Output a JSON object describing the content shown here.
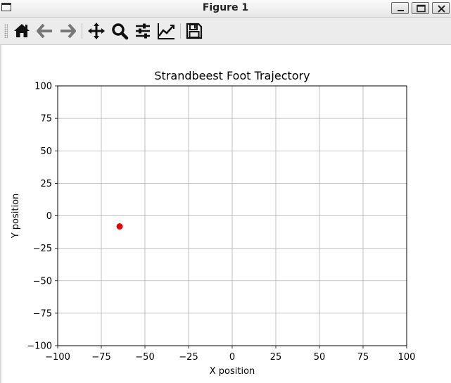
{
  "window": {
    "title": "Figure 1"
  },
  "toolbar": {
    "buttons": [
      {
        "name": "home-button",
        "icon": "home-icon"
      },
      {
        "name": "back-button",
        "icon": "arrow-left-icon"
      },
      {
        "name": "forward-button",
        "icon": "arrow-right-icon"
      },
      {
        "name": "pan-button",
        "icon": "move-icon"
      },
      {
        "name": "zoom-button",
        "icon": "magnifier-icon"
      },
      {
        "name": "configure-subplots-button",
        "icon": "sliders-icon"
      },
      {
        "name": "edit-axes-button",
        "icon": "line-chart-icon"
      },
      {
        "name": "save-button",
        "icon": "floppy-disk-icon"
      }
    ]
  },
  "chart_data": {
    "type": "scatter",
    "title": "Strandbeest Foot Trajectory",
    "xlabel": "X position",
    "ylabel": "Y position",
    "xlim": [
      -100,
      100
    ],
    "ylim": [
      -100,
      100
    ],
    "xticks": [
      "−100",
      "−75",
      "−50",
      "−25",
      "0",
      "25",
      "50",
      "75",
      "100"
    ],
    "yticks": [
      "100",
      "75",
      "50",
      "25",
      "0",
      "−25",
      "−50",
      "−75",
      "−100"
    ],
    "xtick_values": [
      -100,
      -75,
      -50,
      -25,
      0,
      25,
      50,
      75,
      100
    ],
    "ytick_values": [
      100,
      75,
      50,
      25,
      0,
      -25,
      -50,
      -75,
      -100
    ],
    "grid": true,
    "points": [
      {
        "x": -64.5,
        "y": -8.2
      }
    ],
    "point_color": "#e60000"
  }
}
